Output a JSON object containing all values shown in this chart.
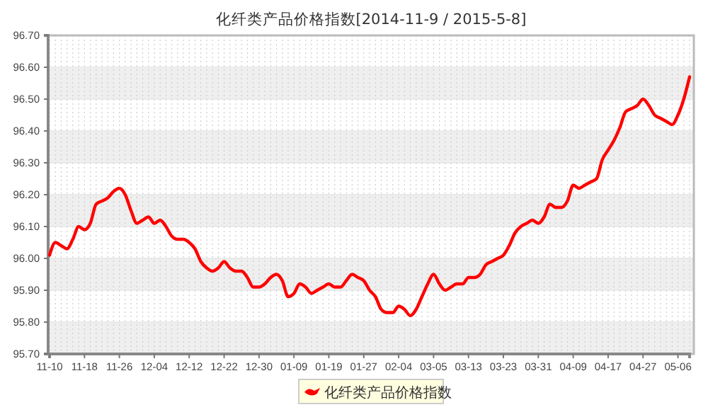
{
  "chart_data": {
    "type": "line",
    "title": "化纤类产品价格指数[2014-11-9 / 2015-5-8]",
    "categories": [
      "11-10",
      null,
      null,
      null,
      null,
      null,
      "11-18",
      null,
      null,
      null,
      null,
      null,
      "11-26",
      null,
      null,
      null,
      null,
      null,
      "12-04",
      null,
      null,
      null,
      null,
      null,
      "12-12",
      null,
      null,
      null,
      null,
      null,
      "12-22",
      null,
      null,
      null,
      null,
      null,
      "12-30",
      null,
      null,
      null,
      null,
      null,
      "01-09",
      null,
      null,
      null,
      null,
      null,
      "01-19",
      null,
      null,
      null,
      null,
      null,
      "01-27",
      null,
      null,
      null,
      null,
      null,
      "02-04",
      null,
      null,
      null,
      null,
      null,
      "03-05",
      null,
      null,
      null,
      null,
      null,
      "03-13",
      null,
      null,
      null,
      null,
      null,
      "03-23",
      null,
      null,
      null,
      null,
      null,
      "03-31",
      null,
      null,
      null,
      null,
      null,
      "04-09",
      null,
      null,
      null,
      null,
      null,
      "04-17",
      null,
      null,
      null,
      null,
      null,
      "04-27",
      null,
      null,
      null,
      null,
      null,
      "05-06",
      null,
      null
    ],
    "series": [
      {
        "name": "化纤类产品价格指数",
        "color": "#ff0000",
        "values": [
          96.01,
          96.05,
          96.04,
          96.03,
          96.06,
          96.1,
          96.09,
          96.11,
          96.17,
          96.18,
          96.19,
          96.21,
          96.22,
          96.2,
          96.15,
          96.11,
          96.12,
          96.13,
          96.11,
          96.12,
          96.1,
          96.07,
          96.06,
          96.06,
          96.05,
          96.03,
          95.99,
          95.97,
          95.96,
          95.97,
          95.99,
          95.97,
          95.96,
          95.96,
          95.94,
          95.91,
          95.91,
          95.92,
          95.94,
          95.95,
          95.93,
          95.88,
          95.89,
          95.92,
          95.91,
          95.89,
          95.9,
          95.91,
          95.92,
          95.91,
          95.91,
          95.93,
          95.95,
          95.94,
          95.93,
          95.9,
          95.88,
          95.84,
          95.83,
          95.83,
          95.85,
          95.84,
          95.82,
          95.84,
          95.88,
          95.92,
          95.95,
          95.92,
          95.9,
          95.91,
          95.92,
          95.92,
          95.94,
          95.94,
          95.95,
          95.98,
          95.99,
          96.0,
          96.01,
          96.04,
          96.08,
          96.1,
          96.11,
          96.12,
          96.11,
          96.13,
          96.17,
          96.16,
          96.16,
          96.18,
          96.23,
          96.22,
          96.23,
          96.24,
          96.25,
          96.31,
          96.34,
          96.37,
          96.41,
          96.46,
          96.47,
          96.48,
          96.5,
          96.48,
          96.45,
          96.44,
          96.43,
          96.42,
          96.45,
          96.5,
          96.57
        ]
      }
    ],
    "ylim": [
      95.7,
      96.7
    ],
    "yticks": [
      {
        "value": 95.7,
        "label": "95.70"
      },
      {
        "value": 95.8,
        "label": "95.80"
      },
      {
        "value": 95.9,
        "label": "95.90"
      },
      {
        "value": 96.0,
        "label": "96.00"
      },
      {
        "value": 96.1,
        "label": "96.10"
      },
      {
        "value": 96.2,
        "label": "96.20"
      },
      {
        "value": 96.3,
        "label": "96.30"
      },
      {
        "value": 96.4,
        "label": "96.40"
      },
      {
        "value": 96.5,
        "label": "96.50"
      },
      {
        "value": 96.6,
        "label": "96.60"
      },
      {
        "value": 96.7,
        "label": "96.70"
      }
    ],
    "grid": true,
    "legend": "bottom",
    "marker": "none",
    "line_style": "solid"
  }
}
